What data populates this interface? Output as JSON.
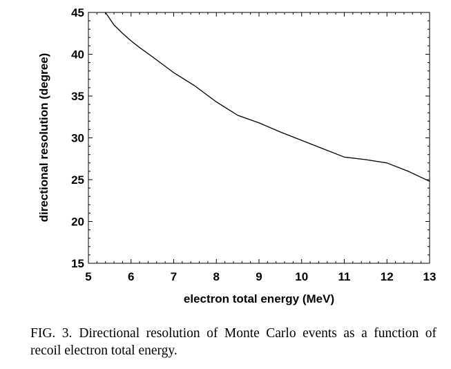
{
  "caption": {
    "label": "FIG. 3.",
    "text": "Directional resolution of Monte Carlo events as a function of recoil electron total energy."
  },
  "chart_data": {
    "type": "line",
    "title": "",
    "xlabel": "electron total energy (MeV)",
    "ylabel": "directional resolution (degree)",
    "xlim": [
      5,
      13
    ],
    "ylim": [
      15,
      45
    ],
    "xticks": [
      5,
      6,
      7,
      8,
      9,
      10,
      11,
      12,
      13
    ],
    "yticks": [
      15,
      20,
      25,
      30,
      35,
      40,
      45
    ],
    "grid": false,
    "line_color": "#000000",
    "series": [
      {
        "x": [
          5.4,
          5.6,
          5.8,
          6.0,
          6.2,
          6.5,
          7.0,
          7.5,
          8.0,
          8.5,
          9.0,
          9.5,
          10.0,
          10.5,
          11.0,
          11.5,
          12.0,
          12.5,
          13.0
        ],
        "y": [
          45.0,
          43.5,
          42.5,
          41.6,
          40.8,
          39.7,
          37.8,
          36.2,
          34.3,
          32.7,
          31.8,
          30.7,
          29.7,
          28.7,
          27.7,
          27.4,
          27.0,
          26.0,
          24.8
        ]
      }
    ]
  }
}
